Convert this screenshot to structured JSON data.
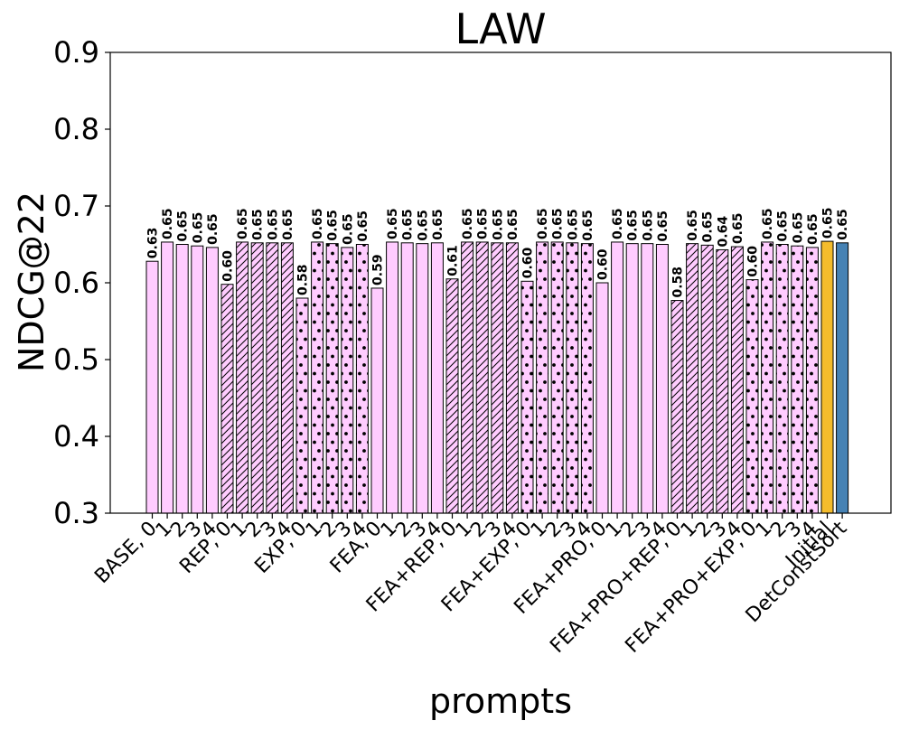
{
  "chart_data": {
    "type": "bar",
    "title": "LAW",
    "xlabel": "prompts",
    "ylabel": "NDCG@22",
    "ylim": [
      0.3,
      0.9
    ],
    "yticks": [
      "0.3",
      "0.4",
      "0.5",
      "0.6",
      "0.7",
      "0.8",
      "0.9"
    ],
    "grid": false,
    "colors": {
      "default": "#ffccff",
      "initial": "#f4bc2c",
      "detconstsort": "#4682b4",
      "edge": "#000000"
    },
    "bars": [
      {
        "category": "BASE, 0",
        "value": 0.628,
        "label": "0.63",
        "hatch": "none",
        "color": "default"
      },
      {
        "category": "1",
        "value": 0.653,
        "label": "0.65",
        "hatch": "none",
        "color": "default"
      },
      {
        "category": "2",
        "value": 0.65,
        "label": "0.65",
        "hatch": "none",
        "color": "default"
      },
      {
        "category": "3",
        "value": 0.648,
        "label": "0.65",
        "hatch": "none",
        "color": "default"
      },
      {
        "category": "4",
        "value": 0.646,
        "label": "0.65",
        "hatch": "none",
        "color": "default"
      },
      {
        "category": "REP, 0",
        "value": 0.598,
        "label": "0.60",
        "hatch": "diag",
        "color": "default"
      },
      {
        "category": "1",
        "value": 0.653,
        "label": "0.65",
        "hatch": "diag",
        "color": "default"
      },
      {
        "category": "2",
        "value": 0.652,
        "label": "0.65",
        "hatch": "diag",
        "color": "default"
      },
      {
        "category": "3",
        "value": 0.652,
        "label": "0.65",
        "hatch": "diag",
        "color": "default"
      },
      {
        "category": "4",
        "value": 0.652,
        "label": "0.65",
        "hatch": "diag",
        "color": "default"
      },
      {
        "category": "EXP, 0",
        "value": 0.58,
        "label": "0.58",
        "hatch": "dots",
        "color": "default"
      },
      {
        "category": "1",
        "value": 0.653,
        "label": "0.65",
        "hatch": "dots",
        "color": "default"
      },
      {
        "category": "2",
        "value": 0.651,
        "label": "0.65",
        "hatch": "dots",
        "color": "default"
      },
      {
        "category": "3",
        "value": 0.646,
        "label": "0.65",
        "hatch": "dots",
        "color": "default"
      },
      {
        "category": "4",
        "value": 0.65,
        "label": "0.65",
        "hatch": "dots",
        "color": "default"
      },
      {
        "category": "FEA, 0",
        "value": 0.593,
        "label": "0.59",
        "hatch": "none",
        "color": "default"
      },
      {
        "category": "1",
        "value": 0.653,
        "label": "0.65",
        "hatch": "none",
        "color": "default"
      },
      {
        "category": "2",
        "value": 0.652,
        "label": "0.65",
        "hatch": "none",
        "color": "default"
      },
      {
        "category": "3",
        "value": 0.651,
        "label": "0.65",
        "hatch": "none",
        "color": "default"
      },
      {
        "category": "4",
        "value": 0.652,
        "label": "0.65",
        "hatch": "none",
        "color": "default"
      },
      {
        "category": "FEA+REP, 0",
        "value": 0.605,
        "label": "0.61",
        "hatch": "diag",
        "color": "default"
      },
      {
        "category": "1",
        "value": 0.653,
        "label": "0.65",
        "hatch": "diag",
        "color": "default"
      },
      {
        "category": "2",
        "value": 0.653,
        "label": "0.65",
        "hatch": "diag",
        "color": "default"
      },
      {
        "category": "3",
        "value": 0.652,
        "label": "0.65",
        "hatch": "diag",
        "color": "default"
      },
      {
        "category": "4",
        "value": 0.652,
        "label": "0.65",
        "hatch": "diag",
        "color": "default"
      },
      {
        "category": "FEA+EXP, 0",
        "value": 0.602,
        "label": "0.60",
        "hatch": "dots",
        "color": "default"
      },
      {
        "category": "1",
        "value": 0.653,
        "label": "0.65",
        "hatch": "dots",
        "color": "default"
      },
      {
        "category": "2",
        "value": 0.653,
        "label": "0.65",
        "hatch": "dots",
        "color": "default"
      },
      {
        "category": "3",
        "value": 0.652,
        "label": "0.65",
        "hatch": "dots",
        "color": "default"
      },
      {
        "category": "4",
        "value": 0.651,
        "label": "0.65",
        "hatch": "dots",
        "color": "default"
      },
      {
        "category": "FEA+PRO, 0",
        "value": 0.6,
        "label": "0.60",
        "hatch": "none",
        "color": "default"
      },
      {
        "category": "1",
        "value": 0.653,
        "label": "0.65",
        "hatch": "none",
        "color": "default"
      },
      {
        "category": "2",
        "value": 0.651,
        "label": "0.65",
        "hatch": "none",
        "color": "default"
      },
      {
        "category": "3",
        "value": 0.651,
        "label": "0.65",
        "hatch": "none",
        "color": "default"
      },
      {
        "category": "4",
        "value": 0.65,
        "label": "0.65",
        "hatch": "none",
        "color": "default"
      },
      {
        "category": "FEA+PRO+REP, 0",
        "value": 0.577,
        "label": "0.58",
        "hatch": "diag",
        "color": "default"
      },
      {
        "category": "1",
        "value": 0.651,
        "label": "0.65",
        "hatch": "diag",
        "color": "default"
      },
      {
        "category": "2",
        "value": 0.649,
        "label": "0.65",
        "hatch": "diag",
        "color": "default"
      },
      {
        "category": "3",
        "value": 0.643,
        "label": "0.64",
        "hatch": "diag",
        "color": "default"
      },
      {
        "category": "4",
        "value": 0.647,
        "label": "0.65",
        "hatch": "diag",
        "color": "default"
      },
      {
        "category": "FEA+PRO+EXP, 0",
        "value": 0.604,
        "label": "0.60",
        "hatch": "dots",
        "color": "default"
      },
      {
        "category": "1",
        "value": 0.653,
        "label": "0.65",
        "hatch": "dots",
        "color": "default"
      },
      {
        "category": "2",
        "value": 0.65,
        "label": "0.65",
        "hatch": "dots",
        "color": "default"
      },
      {
        "category": "3",
        "value": 0.648,
        "label": "0.65",
        "hatch": "dots",
        "color": "default"
      },
      {
        "category": "4",
        "value": 0.646,
        "label": "0.65",
        "hatch": "dots",
        "color": "default"
      },
      {
        "category": "Initial",
        "value": 0.654,
        "label": "0.65",
        "hatch": "none",
        "color": "initial"
      },
      {
        "category": "DetConstSort",
        "value": 0.652,
        "label": "0.65",
        "hatch": "none",
        "color": "detconstsort"
      }
    ]
  }
}
